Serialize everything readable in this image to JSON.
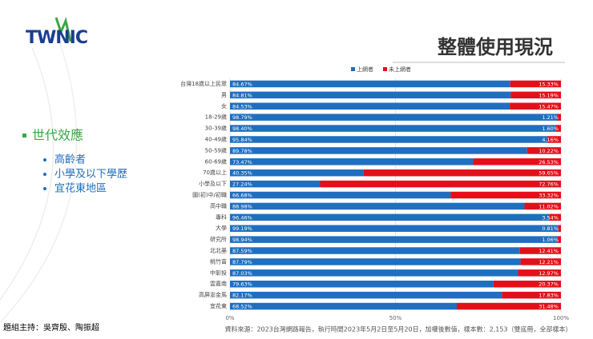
{
  "slide": {
    "logo": "TWNIC",
    "heading": "世代效應",
    "bullets": [
      "高齡者",
      "小學及以下學歷",
      "宜花東地區"
    ],
    "host": "題組主持：吳齊殷、陶振超"
  },
  "chart_data": {
    "type": "stacked-bar-horizontal",
    "title": "整體使用現況",
    "source": "資料來源：2023台灣網路報告，執行時間2023年5月2日至5月20日，加權後數值，樣本數：2,153（雙底冊，全部樣本）",
    "categories": [
      "台灣18歲以上民眾",
      "男",
      "女",
      "18-29歲",
      "30-39歲",
      "40-49歲",
      "50-59歲",
      "60-69歲",
      "70歲以上",
      "小學及以下",
      "國(初)中/初職",
      "高中職",
      "專科",
      "大學",
      "研究所",
      "北北基",
      "桃竹苗",
      "中彰投",
      "雲嘉南",
      "高屏澎金馬",
      "宜花東"
    ],
    "series": [
      {
        "name": "上網者",
        "color": "#1f6fc0",
        "values": [
          84.67,
          84.81,
          84.53,
          98.79,
          98.4,
          95.84,
          89.78,
          73.47,
          40.35,
          27.24,
          66.68,
          88.98,
          96.46,
          99.19,
          98.94,
          87.59,
          87.79,
          87.03,
          79.63,
          82.17,
          68.52
        ],
        "value_labels": [
          "84.67%",
          "84.81%",
          "84.53%",
          "98.79%",
          "98.40%",
          "95.84%",
          "89.78%",
          "73.47%",
          "40.35%",
          "27.24%",
          "66.68%",
          "88.98%",
          "96.46%",
          "99.19%",
          "98.94%",
          "87.59%",
          "87.79%",
          "87.03%",
          "79.63%",
          "82.17%",
          "68.52%"
        ]
      },
      {
        "name": "未上網者",
        "color": "#e3101a",
        "values": [
          15.33,
          15.19,
          15.47,
          1.21,
          1.6,
          4.16,
          10.22,
          26.53,
          59.65,
          72.76,
          33.32,
          11.02,
          3.54,
          0.81,
          1.06,
          12.41,
          12.21,
          12.97,
          20.37,
          17.83,
          31.48
        ],
        "value_labels": [
          "15.33%",
          "15.19%",
          "15.47%",
          "1.21%",
          "1.60%",
          "4.16%",
          "10.22%",
          "26.53%",
          "59.65%",
          "72.76%",
          "33.32%",
          "11.02%",
          "3.54%",
          "0.81%",
          "1.06%",
          "12.41%",
          "12.21%",
          "12.97%",
          "20.37%",
          "17.83%",
          "31.48%"
        ]
      }
    ],
    "xlim": [
      0,
      100
    ],
    "xticks": [
      {
        "value": 0,
        "label": "0%"
      },
      {
        "value": 50,
        "label": "50%"
      },
      {
        "value": 100,
        "label": "100%"
      }
    ],
    "grid": true,
    "legend": "top"
  }
}
